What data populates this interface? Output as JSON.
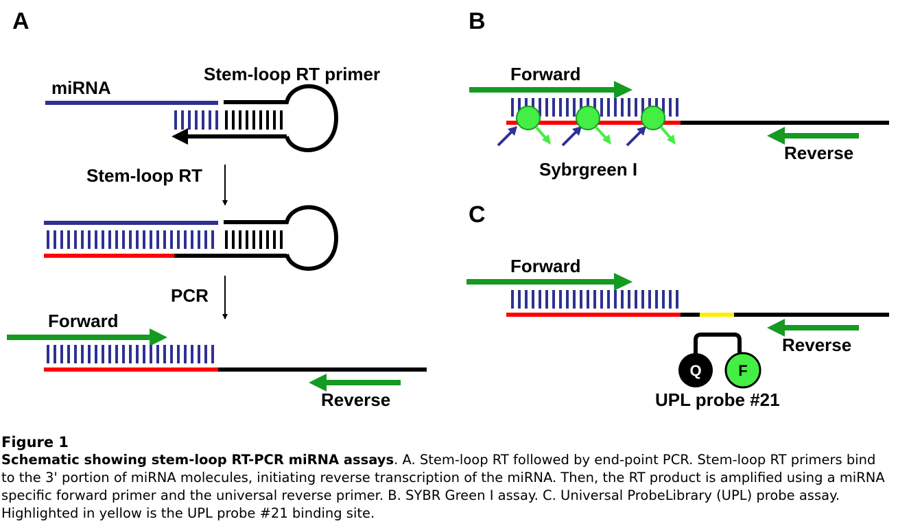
{
  "panels": {
    "a": {
      "letter": "A",
      "mirna_label": "miRNA",
      "primer_label": "Stem-loop RT primer",
      "step1_label": "Stem-loop RT",
      "step2_label": "PCR",
      "forward_label": "Forward",
      "reverse_label": "Reverse"
    },
    "b": {
      "letter": "B",
      "forward_label": "Forward",
      "reverse_label": "Reverse",
      "dye_label": "Sybrgreen I"
    },
    "c": {
      "letter": "C",
      "forward_label": "Forward",
      "reverse_label": "Reverse",
      "quencher": "Q",
      "fluorophore": "F",
      "probe_label": "UPL probe #21"
    }
  },
  "colors": {
    "mirna": "#2e3192",
    "rt_product": "#ff0000",
    "primer_green": "#159a22",
    "dye_green": "#44ee44",
    "probe_site": "#ffee00",
    "quencher": "#000000",
    "black": "#000000"
  },
  "caption": {
    "figure_label": "Figure 1",
    "title": "Schematic showing stem-loop RT-PCR miRNA assays",
    "body": ". A. Stem-loop RT followed by end-point PCR. Stem-loop RT primers bind to the 3' portion of miRNA molecules, initiating reverse transcription of the miRNA. Then, the RT product is amplified using a miRNA specific forward primer and the universal reverse primer. B. SYBR Green I assay. C. Universal ProbeLibrary (UPL) probe assay. Highlighted in yellow is the UPL probe #21 binding site."
  }
}
